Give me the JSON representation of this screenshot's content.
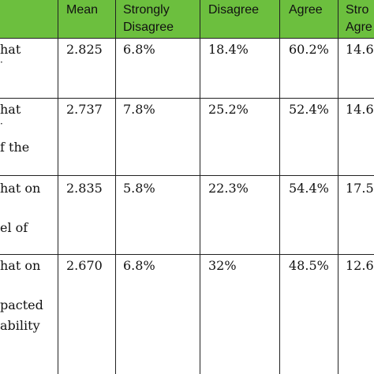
{
  "table": {
    "headers": {
      "mean": "Mean",
      "strongly_disagree_1": "Strongly",
      "strongly_disagree_2": "Disagree",
      "disagree": "Disagree",
      "agree": "Agree",
      "strongly_agree_1": "Stro",
      "strongly_agree_2": "Agre"
    },
    "rows": [
      {
        "stub_lines": [
          "hat",
          "·"
        ],
        "mean": "2.825",
        "strongly_disagree": "6.8%",
        "disagree": "18.4%",
        "agree": "60.2%",
        "strongly_agree": "14.6"
      },
      {
        "stub_lines": [
          "hat",
          "·",
          "f the"
        ],
        "mean": "2.737",
        "strongly_disagree": "7.8%",
        "disagree": "25.2%",
        "agree": "52.4%",
        "strongly_agree": "14.6"
      },
      {
        "stub_lines": [
          "hat on",
          "el of"
        ],
        "mean": "2.835",
        "strongly_disagree": "5.8%",
        "disagree": "22.3%",
        "agree": "54.4%",
        "strongly_agree": "17.5"
      },
      {
        "stub_lines": [
          "hat on",
          "pacted",
          "ability"
        ],
        "mean": "2.670",
        "strongly_disagree": "6.8%",
        "disagree": "32%",
        "agree": "48.5%",
        "strongly_agree": "12.6"
      }
    ]
  }
}
